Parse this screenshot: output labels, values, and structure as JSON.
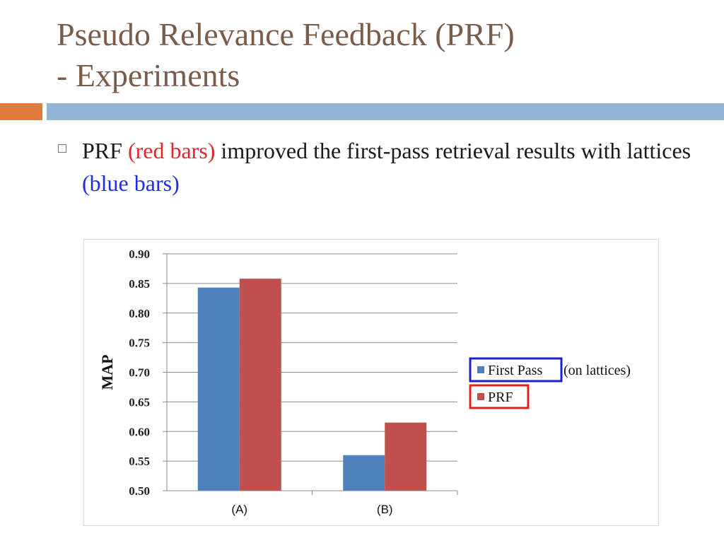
{
  "slide": {
    "title_line1": "Pseudo Relevance Feedback (PRF)",
    "title_line2": "- Experiments",
    "colors": {
      "title": "#7b5c4b",
      "accent_orange": "#e07b39",
      "accent_blue": "#93b4d4",
      "red_text": "#e0262b",
      "blue_text": "#1f2ee8"
    },
    "bullet": {
      "part1": "PRF ",
      "part2": "(red bars)",
      "part3": " improved the first-pass retrieval results with lattices ",
      "part4": "(blue bars)"
    }
  },
  "chart_data": {
    "type": "bar",
    "categories": [
      "(A)",
      "(B)"
    ],
    "series": [
      {
        "name": "First Pass",
        "color": "#4f81bd",
        "values": [
          0.843,
          0.56
        ]
      },
      {
        "name": "PRF",
        "color": "#c0504d",
        "values": [
          0.858,
          0.615
        ]
      }
    ],
    "legend_annotation": "(on lattices)",
    "legend_box_colors": [
      "#1f1fd0",
      "#e02020"
    ],
    "ylabel": "MAP",
    "xlabel": "",
    "ylim": [
      0.5,
      0.9
    ],
    "yticks": [
      "0.50",
      "0.55",
      "0.60",
      "0.65",
      "0.70",
      "0.75",
      "0.80",
      "0.85",
      "0.90"
    ],
    "grid": true,
    "legend_position": "right"
  }
}
